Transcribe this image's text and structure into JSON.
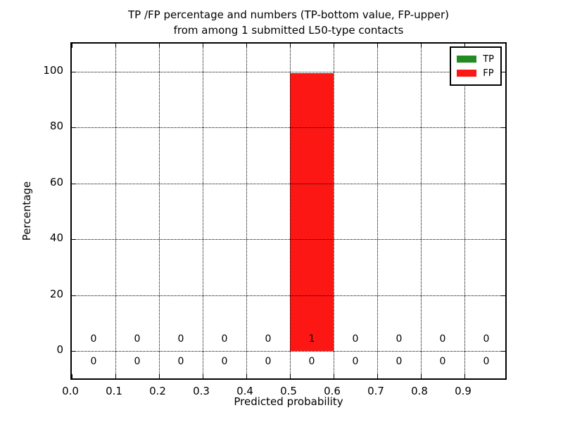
{
  "chart_data": {
    "type": "bar",
    "title_line1": "TP /FP percentage and numbers (TP-bottom value, FP-upper)",
    "title_line2": "from among 1 submitted L50-type contacts",
    "xlabel": "Predicted probability",
    "ylabel": "Percentage",
    "x_ticks": [
      "0.0",
      "0.1",
      "0.2",
      "0.3",
      "0.4",
      "0.5",
      "0.6",
      "0.7",
      "0.8",
      "0.9"
    ],
    "y_ticks": [
      0,
      20,
      40,
      60,
      80,
      100
    ],
    "xlim": [
      0.0,
      1.0
    ],
    "ylim": [
      -11,
      110
    ],
    "bin_width": 0.1,
    "bin_centers": [
      0.05,
      0.15,
      0.25,
      0.35,
      0.45,
      0.55,
      0.65,
      0.75,
      0.85,
      0.95
    ],
    "grid": "dotted",
    "grid_over_bars": true,
    "legend_position": "upper right",
    "series": [
      {
        "name": "TP",
        "color": "#228b22",
        "percentages": [
          0,
          0,
          0,
          0,
          0,
          0,
          0,
          0,
          0,
          0
        ],
        "counts": [
          0,
          0,
          0,
          0,
          0,
          0,
          0,
          0,
          0,
          0
        ],
        "counts_row": "lower"
      },
      {
        "name": "FP",
        "color": "#fc1715",
        "percentages": [
          0,
          0,
          0,
          0,
          0,
          100,
          0,
          0,
          0,
          0
        ],
        "counts": [
          0,
          0,
          0,
          0,
          0,
          1,
          0,
          0,
          0,
          0
        ],
        "counts_row": "upper"
      }
    ]
  }
}
